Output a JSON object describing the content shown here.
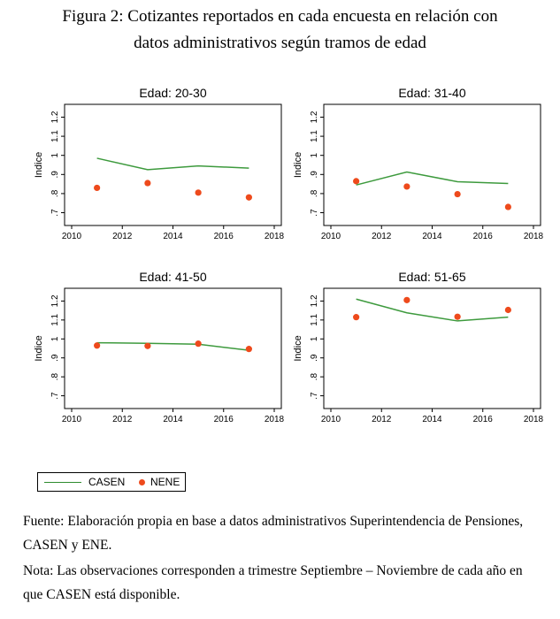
{
  "figure": {
    "caption_line1": "Figura 2: Cotizantes reportados en cada encuesta en relación con",
    "caption_line2": "datos administrativos según tramos de edad"
  },
  "colors": {
    "casen": "#3d9a3d",
    "nene": "#ee4a1c"
  },
  "legend": {
    "casen": "CASEN",
    "nene": "NENE"
  },
  "notes": {
    "fuente": "Fuente: Elaboración propia en base a datos administrativos Superintendencia de Pensiones, CASEN y ENE.",
    "nota": "Nota: Las observaciones corresponden a trimestre Septiembre – Noviembre de cada año en que CASEN está disponible."
  },
  "chart_data": [
    {
      "type": "line",
      "title": "Edad: 20-30",
      "ylabel": "Indice",
      "xlim": [
        2010,
        2018
      ],
      "ylim": [
        0.7,
        1.2
      ],
      "xticks": [
        2010,
        2012,
        2014,
        2016,
        2018
      ],
      "yticks": [
        ".7",
        ".8",
        ".9",
        "1",
        "1.1",
        "1.2"
      ],
      "x": [
        2011,
        2013,
        2015,
        2017
      ],
      "series": [
        {
          "name": "CASEN",
          "style": "line",
          "values": [
            0.985,
            0.925,
            0.945,
            0.933
          ]
        },
        {
          "name": "NENE",
          "style": "scatter",
          "values": [
            0.83,
            0.855,
            0.805,
            0.78
          ]
        }
      ]
    },
    {
      "type": "line",
      "title": "Edad: 31-40",
      "ylabel": "Indice",
      "xlim": [
        2010,
        2018
      ],
      "ylim": [
        0.7,
        1.2
      ],
      "xticks": [
        2010,
        2012,
        2014,
        2016,
        2018
      ],
      "yticks": [
        ".7",
        ".8",
        ".9",
        "1",
        "1.1",
        "1.2"
      ],
      "x": [
        2011,
        2013,
        2015,
        2017
      ],
      "series": [
        {
          "name": "CASEN",
          "style": "line",
          "values": [
            0.845,
            0.913,
            0.862,
            0.853
          ]
        },
        {
          "name": "NENE",
          "style": "scatter",
          "values": [
            0.865,
            0.837,
            0.797,
            0.73
          ]
        }
      ]
    },
    {
      "type": "line",
      "title": "Edad: 41-50",
      "ylabel": "Indice",
      "xlim": [
        2010,
        2018
      ],
      "ylim": [
        0.7,
        1.2
      ],
      "xticks": [
        2010,
        2012,
        2014,
        2016,
        2018
      ],
      "yticks": [
        ".7",
        ".8",
        ".9",
        "1",
        "1.1",
        "1.2"
      ],
      "x": [
        2011,
        2013,
        2015,
        2017
      ],
      "series": [
        {
          "name": "CASEN",
          "style": "line",
          "values": [
            0.98,
            0.977,
            0.972,
            0.94
          ]
        },
        {
          "name": "NENE",
          "style": "scatter",
          "values": [
            0.965,
            0.963,
            0.975,
            0.947
          ]
        }
      ]
    },
    {
      "type": "line",
      "title": "Edad: 51-65",
      "ylabel": "Indice",
      "xlim": [
        2010,
        2018
      ],
      "ylim": [
        0.7,
        1.2
      ],
      "xticks": [
        2010,
        2012,
        2014,
        2016,
        2018
      ],
      "yticks": [
        ".7",
        ".8",
        ".9",
        "1",
        "1.1",
        "1.2"
      ],
      "x": [
        2011,
        2013,
        2015,
        2017
      ],
      "series": [
        {
          "name": "CASEN",
          "style": "line",
          "values": [
            1.21,
            1.138,
            1.095,
            1.115
          ]
        },
        {
          "name": "NENE",
          "style": "scatter",
          "values": [
            1.115,
            1.205,
            1.117,
            1.153
          ]
        }
      ]
    }
  ]
}
